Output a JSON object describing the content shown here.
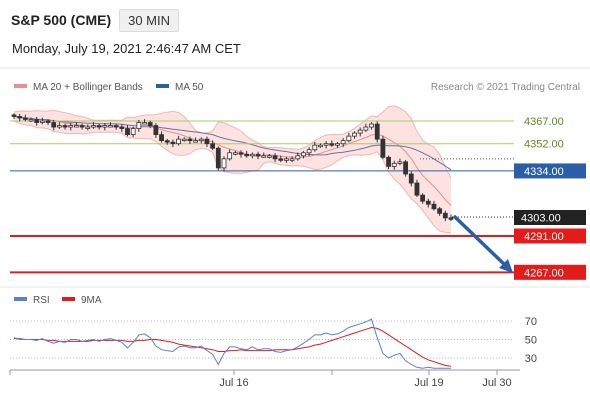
{
  "header": {
    "symbol": "S&P 500 (CME)",
    "interval": "30 MIN",
    "datetime": "Monday, July 19, 2021 2:46:47 AM CET"
  },
  "legend": {
    "bb_label": "MA 20 + Bollinger Bands",
    "ma50_label": "MA 50",
    "rsi_label": "RSI",
    "rsi_ma_label": "9MA",
    "credit": "Research © 2021 Trading Central"
  },
  "colors": {
    "bb": "#f08c8c",
    "bb_fill": "#fde2e2",
    "ma50": "#2b5ea7",
    "resistance_green": "#a6cc66",
    "level_blue": "#2b5ea7",
    "support_red": "#e31b1b",
    "arrow": "#2b5ea7",
    "rsi": "#5b7fd6",
    "rsi_ma": "#e31b1b",
    "candle_up": "#ffffff",
    "candle_down": "#333333"
  },
  "chart_data": {
    "type": "candlestick",
    "title": "S&P 500 (CME)",
    "interval": "30 MIN",
    "y_range": [
      4292,
      4373
    ],
    "x_tick_labels": [
      "Jul 16",
      "Jul 19",
      "Jul 30"
    ],
    "candles_close": [
      4370,
      4369,
      4368,
      4368,
      4366,
      4367,
      4366,
      4363,
      4364,
      4363,
      4364,
      4364,
      4363,
      4363,
      4364,
      4363,
      4364,
      4364,
      4363,
      4362,
      4358,
      4362,
      4366,
      4366,
      4364,
      4358,
      4354,
      4353,
      4352,
      4355,
      4355,
      4354,
      4354,
      4355,
      4352,
      4349,
      4336,
      4342,
      4346,
      4346,
      4345,
      4344,
      4345,
      4344,
      4344,
      4344,
      4342,
      4341,
      4342,
      4342,
      4344,
      4346,
      4348,
      4351,
      4351,
      4352,
      4351,
      4352,
      4354,
      4357,
      4359,
      4361,
      4363,
      4365,
      4355,
      4343,
      4337,
      4339,
      4340,
      4332,
      4326,
      4318,
      4314,
      4312,
      4309,
      4306,
      4303,
      4302
    ],
    "current_price": "4303.00",
    "levels": [
      {
        "label": "4367.00",
        "value": 4367,
        "style": "resistance"
      },
      {
        "label": "4352.00",
        "value": 4352,
        "style": "resistance"
      },
      {
        "label": "4334.00",
        "value": 4334,
        "style": "pivot"
      },
      {
        "label": "4291.00",
        "value": 4291,
        "style": "support"
      },
      {
        "label": "4267.00",
        "value": 4267,
        "style": "support"
      }
    ],
    "forecast_target": 4267,
    "rsi": {
      "ticks": [
        "70",
        "50",
        "30"
      ],
      "levels": [
        70,
        50,
        30
      ],
      "values": [
        52,
        50,
        50,
        50,
        49,
        51,
        48,
        46,
        48,
        47,
        50,
        50,
        48,
        49,
        50,
        48,
        50,
        51,
        49,
        47,
        41,
        47,
        55,
        56,
        52,
        43,
        39,
        38,
        37,
        42,
        43,
        41,
        41,
        43,
        38,
        34,
        23,
        35,
        42,
        42,
        40,
        39,
        42,
        39,
        40,
        40,
        37,
        36,
        38,
        39,
        42,
        46,
        50,
        55,
        55,
        57,
        55,
        56,
        59,
        63,
        65,
        67,
        69,
        72,
        52,
        35,
        30,
        33,
        35,
        27,
        23,
        20,
        19,
        20,
        19,
        19,
        19,
        19
      ],
      "ma9": [
        51,
        51,
        50,
        50,
        50,
        50,
        49,
        49,
        48,
        48,
        48,
        48,
        48,
        48,
        49,
        49,
        49,
        49,
        49,
        49,
        48,
        48,
        49,
        49,
        50,
        50,
        49,
        48,
        47,
        45,
        44,
        43,
        42,
        41,
        40,
        39,
        37,
        37,
        38,
        38,
        39,
        38,
        38,
        38,
        38,
        38,
        39,
        39,
        39,
        39,
        40,
        41,
        42,
        44,
        45,
        47,
        49,
        51,
        53,
        55,
        57,
        59,
        61,
        63,
        62,
        59,
        55,
        51,
        47,
        43,
        39,
        35,
        31,
        28,
        26,
        24,
        22,
        21
      ]
    }
  }
}
